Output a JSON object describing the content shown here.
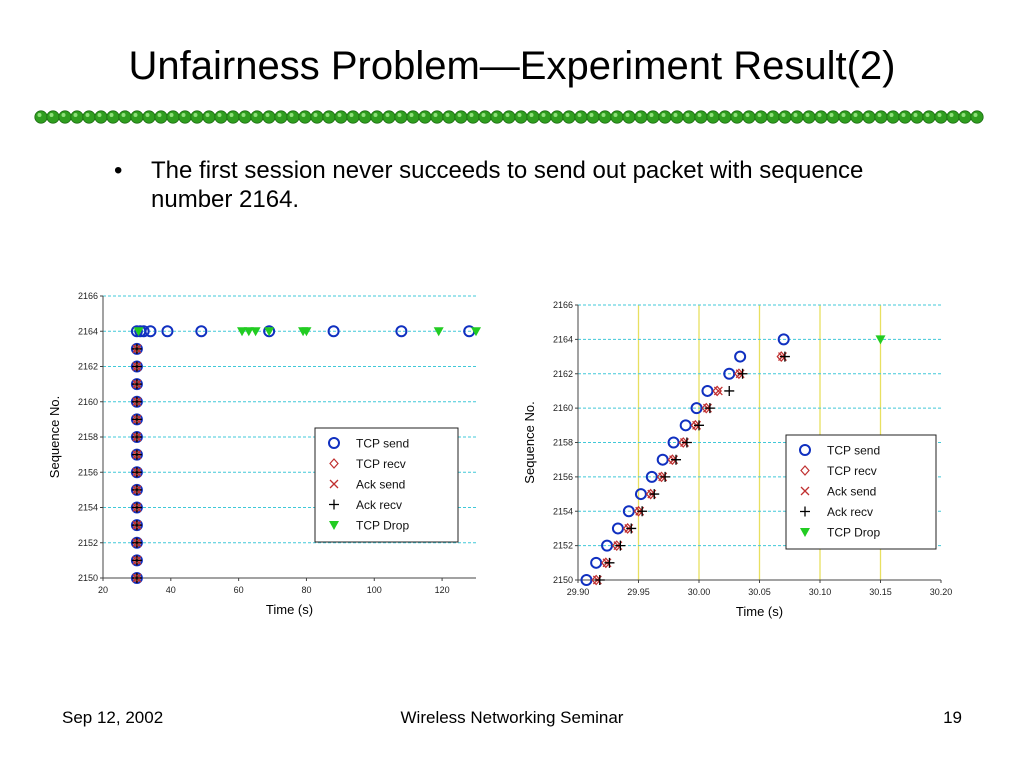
{
  "slide": {
    "title": "Unfairness Problem—Experiment Result(2)",
    "bullet_symbol": "•",
    "bullet_text": "The first session never succeeds to send out packet with sequence number 2164.",
    "accent_color": "#2f9e1f"
  },
  "footer": {
    "date": "Sep 12, 2002",
    "center": "Wireless Networking Seminar",
    "page": "19"
  },
  "chart_data": [
    {
      "type": "scatter",
      "xlabel": "Time (s)",
      "ylabel": "Sequence No.",
      "xlim": [
        20,
        130
      ],
      "ylim": [
        2150,
        2166
      ],
      "x_ticks": [
        "20",
        "40",
        "60",
        "80",
        "100",
        "120"
      ],
      "y_ticks": [
        "2150",
        "2152",
        "2154",
        "2156",
        "2158",
        "2160",
        "2162",
        "2164",
        "2166"
      ],
      "grid": "horizontal",
      "legend_position": "lower-right",
      "series": [
        {
          "name": "TCP send",
          "marker": "circle",
          "color": "#1030c0",
          "points": [
            [
              30,
              2150
            ],
            [
              30,
              2151
            ],
            [
              30,
              2152
            ],
            [
              30,
              2153
            ],
            [
              30,
              2154
            ],
            [
              30,
              2155
            ],
            [
              30,
              2156
            ],
            [
              30,
              2157
            ],
            [
              30,
              2158
            ],
            [
              30,
              2159
            ],
            [
              30,
              2160
            ],
            [
              30,
              2161
            ],
            [
              30,
              2162
            ],
            [
              30,
              2163
            ],
            [
              30,
              2164
            ],
            [
              31,
              2164
            ],
            [
              32,
              2164
            ],
            [
              34,
              2164
            ],
            [
              39,
              2164
            ],
            [
              49,
              2164
            ],
            [
              69,
              2164
            ],
            [
              88,
              2164
            ],
            [
              108,
              2164
            ],
            [
              128,
              2164
            ]
          ]
        },
        {
          "name": "TCP recv",
          "marker": "diamond",
          "color": "#c03030",
          "points": [
            [
              30,
              2150
            ],
            [
              30,
              2151
            ],
            [
              30,
              2152
            ],
            [
              30,
              2153
            ],
            [
              30,
              2154
            ],
            [
              30,
              2155
            ],
            [
              30,
              2156
            ],
            [
              30,
              2157
            ],
            [
              30,
              2158
            ],
            [
              30,
              2159
            ],
            [
              30,
              2160
            ],
            [
              30,
              2161
            ],
            [
              30,
              2162
            ],
            [
              30,
              2163
            ]
          ]
        },
        {
          "name": "Ack send",
          "marker": "x",
          "color": "#c03030",
          "points": [
            [
              30,
              2150
            ],
            [
              30,
              2151
            ],
            [
              30,
              2152
            ],
            [
              30,
              2153
            ],
            [
              30,
              2154
            ],
            [
              30,
              2155
            ],
            [
              30,
              2156
            ],
            [
              30,
              2157
            ],
            [
              30,
              2158
            ],
            [
              30,
              2159
            ],
            [
              30,
              2160
            ],
            [
              30,
              2161
            ],
            [
              30,
              2162
            ],
            [
              30,
              2163
            ]
          ]
        },
        {
          "name": "Ack recv",
          "marker": "plus",
          "color": "#000000",
          "points": [
            [
              30,
              2150
            ],
            [
              30,
              2151
            ],
            [
              30,
              2152
            ],
            [
              30,
              2153
            ],
            [
              30,
              2154
            ],
            [
              30,
              2155
            ],
            [
              30,
              2156
            ],
            [
              30,
              2157
            ],
            [
              30,
              2158
            ],
            [
              30,
              2159
            ],
            [
              30,
              2160
            ],
            [
              30,
              2161
            ],
            [
              30,
              2162
            ],
            [
              30,
              2163
            ]
          ]
        },
        {
          "name": "TCP Drop",
          "marker": "triangle-down",
          "color": "#22cc22",
          "points": [
            [
              30.5,
              2164
            ],
            [
              61,
              2164
            ],
            [
              63,
              2164
            ],
            [
              65,
              2164
            ],
            [
              69,
              2164
            ],
            [
              79,
              2164
            ],
            [
              80,
              2164
            ],
            [
              119,
              2164
            ],
            [
              130,
              2164
            ]
          ]
        }
      ]
    },
    {
      "type": "scatter",
      "xlabel": "Time (s)",
      "ylabel": "Sequence No.",
      "xlim": [
        29.9,
        30.2
      ],
      "ylim": [
        2150,
        2166
      ],
      "x_ticks": [
        "29.90",
        "29.95",
        "30.00",
        "30.05",
        "30.10",
        "30.15",
        "30.20"
      ],
      "y_ticks": [
        "2150",
        "2152",
        "2154",
        "2156",
        "2158",
        "2160",
        "2162",
        "2164",
        "2166"
      ],
      "grid": "horizontal",
      "vertical_lines": [
        29.95,
        30.0,
        30.05,
        30.1,
        30.15
      ],
      "legend_position": "lower-right",
      "series": [
        {
          "name": "TCP send",
          "marker": "circle",
          "color": "#1030c0",
          "points": [
            [
              29.907,
              2150
            ],
            [
              29.915,
              2151
            ],
            [
              29.924,
              2152
            ],
            [
              29.933,
              2153
            ],
            [
              29.942,
              2154
            ],
            [
              29.952,
              2155
            ],
            [
              29.961,
              2156
            ],
            [
              29.97,
              2157
            ],
            [
              29.979,
              2158
            ],
            [
              29.989,
              2159
            ],
            [
              29.998,
              2160
            ],
            [
              30.007,
              2161
            ],
            [
              30.025,
              2162
            ],
            [
              30.034,
              2163
            ],
            [
              30.07,
              2164
            ]
          ]
        },
        {
          "name": "TCP recv",
          "marker": "diamond",
          "color": "#c03030",
          "points": [
            [
              29.915,
              2150
            ],
            [
              29.923,
              2151
            ],
            [
              29.932,
              2152
            ],
            [
              29.941,
              2153
            ],
            [
              29.95,
              2154
            ],
            [
              29.96,
              2155
            ],
            [
              29.969,
              2156
            ],
            [
              29.978,
              2157
            ],
            [
              29.987,
              2158
            ],
            [
              29.997,
              2159
            ],
            [
              30.006,
              2160
            ],
            [
              30.015,
              2161
            ],
            [
              30.033,
              2162
            ],
            [
              30.068,
              2163
            ]
          ]
        },
        {
          "name": "Ack send",
          "marker": "x",
          "color": "#c03030",
          "points": [
            [
              29.916,
              2150
            ],
            [
              29.924,
              2151
            ],
            [
              29.933,
              2152
            ],
            [
              29.942,
              2153
            ],
            [
              29.951,
              2154
            ],
            [
              29.961,
              2155
            ],
            [
              29.97,
              2156
            ],
            [
              29.979,
              2157
            ],
            [
              29.988,
              2158
            ],
            [
              29.998,
              2159
            ],
            [
              30.007,
              2160
            ],
            [
              30.016,
              2161
            ],
            [
              30.034,
              2162
            ],
            [
              30.069,
              2163
            ]
          ]
        },
        {
          "name": "Ack recv",
          "marker": "plus",
          "color": "#000000",
          "points": [
            [
              29.918,
              2150
            ],
            [
              29.926,
              2151
            ],
            [
              29.935,
              2152
            ],
            [
              29.944,
              2153
            ],
            [
              29.953,
              2154
            ],
            [
              29.963,
              2155
            ],
            [
              29.972,
              2156
            ],
            [
              29.981,
              2157
            ],
            [
              29.99,
              2158
            ],
            [
              30.0,
              2159
            ],
            [
              30.009,
              2160
            ],
            [
              30.025,
              2161
            ],
            [
              30.036,
              2162
            ],
            [
              30.071,
              2163
            ]
          ]
        },
        {
          "name": "TCP Drop",
          "marker": "triangle-down",
          "color": "#22cc22",
          "points": [
            [
              30.15,
              2164
            ]
          ]
        }
      ]
    }
  ]
}
